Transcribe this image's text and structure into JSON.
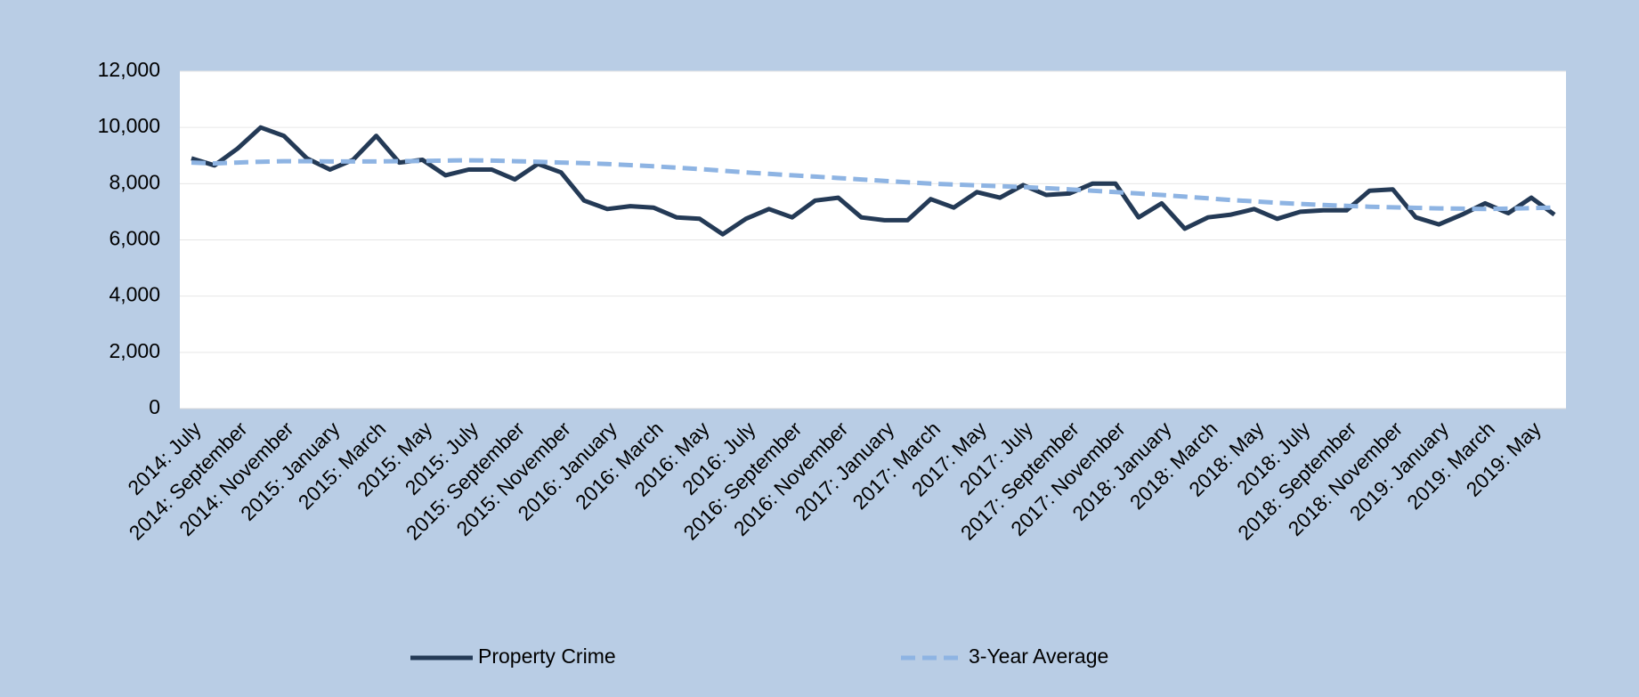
{
  "chart_data": {
    "type": "line",
    "categories": [
      "2014: July",
      null,
      "2014: September",
      null,
      "2014: November",
      null,
      "2015: January",
      null,
      "2015: March",
      null,
      "2015: May",
      null,
      "2015: July",
      null,
      "2015: September",
      null,
      "2015: November",
      null,
      "2016: January",
      null,
      "2016: March",
      null,
      "2016: May",
      null,
      "2016: July",
      null,
      "2016: September",
      null,
      "2016: November",
      null,
      "2017: January",
      null,
      "2017: March",
      null,
      "2017: May",
      null,
      "2017: July",
      null,
      "2017: September",
      null,
      "2017: November",
      null,
      "2018: January",
      null,
      "2018: March",
      null,
      "2018: May",
      null,
      "2018: July",
      null,
      "2018: September",
      null,
      "2018: November",
      null,
      "2019: January",
      null,
      "2019: March",
      null,
      "2019: May",
      null
    ],
    "series": [
      {
        "name": "Property Crime",
        "color": "#243a56",
        "dashed": false,
        "values": [
          8900,
          8650,
          9250,
          10000,
          9700,
          8900,
          8500,
          8850,
          9700,
          8750,
          8850,
          8300,
          8500,
          8500,
          8150,
          8700,
          8400,
          7400,
          7100,
          7200,
          7150,
          6800,
          6750,
          6200,
          6750,
          7100,
          6800,
          7400,
          7500,
          6800,
          6700,
          6700,
          7450,
          7150,
          7700,
          7500,
          7950,
          7600,
          7650,
          8000,
          8000,
          6800,
          7300,
          6400,
          6800,
          6900,
          7100,
          6750,
          7000,
          7050,
          7050,
          7750,
          7800,
          6800,
          6550,
          6900,
          7300,
          6950,
          7500,
          6900
        ]
      },
      {
        "name": "3-Year Average",
        "color": "#8eb4e3",
        "dashed": true,
        "values": [
          8750,
          8720,
          8750,
          8780,
          8800,
          8800,
          8790,
          8790,
          8790,
          8800,
          8810,
          8820,
          8830,
          8820,
          8800,
          8780,
          8750,
          8730,
          8700,
          8660,
          8620,
          8570,
          8520,
          8460,
          8400,
          8350,
          8300,
          8250,
          8200,
          8150,
          8100,
          8050,
          8000,
          7970,
          7940,
          7910,
          7880,
          7840,
          7800,
          7750,
          7700,
          7650,
          7600,
          7540,
          7480,
          7420,
          7370,
          7320,
          7280,
          7240,
          7210,
          7180,
          7160,
          7140,
          7120,
          7110,
          7100,
          7110,
          7130,
          7150
        ]
      }
    ],
    "ylim": [
      0,
      12000
    ],
    "yticks": [
      0,
      {
        "value": 2000,
        "label": "2,000"
      },
      {
        "value": 4000,
        "label": "4,000"
      },
      {
        "value": 6000,
        "label": "6,000"
      },
      {
        "value": 8000,
        "label": "8,000"
      },
      {
        "value": 10000,
        "label": "10,000"
      },
      {
        "value": 12000,
        "label": "12,000"
      }
    ],
    "grid": true,
    "legend": "bottom"
  }
}
